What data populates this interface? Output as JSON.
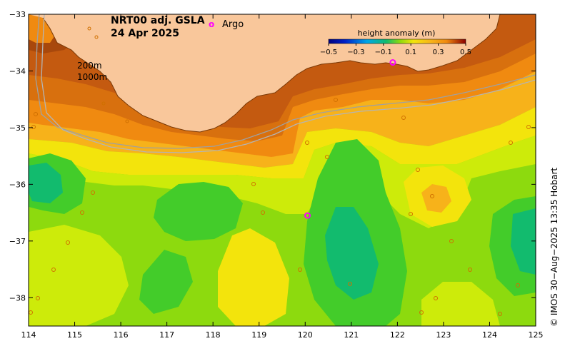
{
  "title": {
    "product": "NRT00 adj. GSLA",
    "date": "24 Apr 2025"
  },
  "legend": {
    "argo_symbol": "o",
    "argo_label": "Argo",
    "colorbar_title": "height anomaly (m)",
    "colorbar_ticks": [
      "−0.5",
      "−0.3",
      "−0.1",
      "0.1",
      "0.3",
      "0.5"
    ],
    "colorbar_values": [
      -0.5,
      -0.3,
      -0.1,
      0.1,
      0.3,
      0.5
    ]
  },
  "depth_labels": {
    "shallow": "200m",
    "deep": "1000m"
  },
  "axes": {
    "lon_ticks": [
      "114",
      "115",
      "116",
      "117",
      "118",
      "119",
      "120",
      "121",
      "122",
      "123",
      "124",
      "125"
    ],
    "lat_ticks": [
      "−33",
      "−34",
      "−35",
      "−36",
      "−37",
      "−38"
    ],
    "lon_range": [
      114,
      125
    ],
    "lat_range": [
      -38.5,
      -33
    ]
  },
  "credit": "© IMOS 30−Aug−2025 13:35 Hobart",
  "colors": {
    "land": "#F9C79B",
    "coast_high": "#C45A10",
    "orange": "#F08A10",
    "light_orange": "#F7B21A",
    "yellow": "#F3E40C",
    "yellow_green": "#CDEB0A",
    "green": "#8DDA0E",
    "mid_green": "#43CC2A",
    "teal": "#12BB6E",
    "argo": "#FF00FF"
  },
  "argo_floats": [
    {
      "lon": 120.05,
      "lat": -36.55
    },
    {
      "lon": 121.9,
      "lat": -33.85
    }
  ]
}
